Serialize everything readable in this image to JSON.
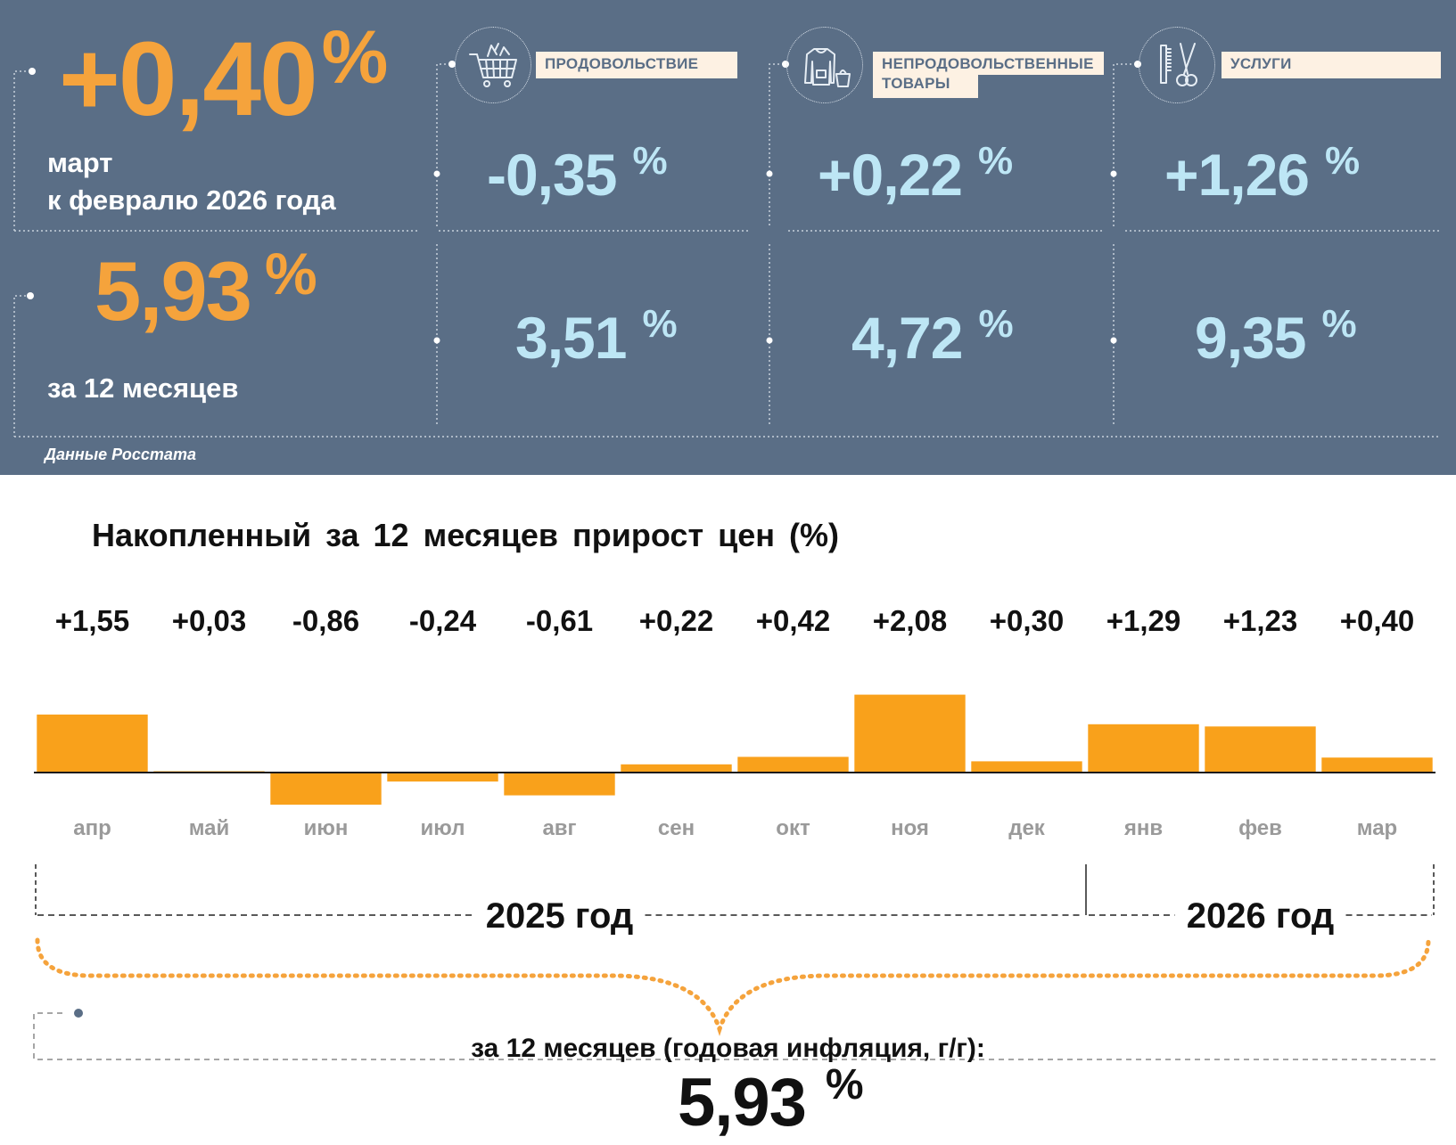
{
  "monthly": {
    "value": "+0,40",
    "unit": "%",
    "caption_line1": "март",
    "caption_line2": "к февралю 2026 года"
  },
  "annual": {
    "value": "5,93",
    "unit": "%",
    "caption": "за 12 месяцев"
  },
  "categories": [
    {
      "label": "ПРОДОВОЛЬСТВИЕ",
      "icon": "shopping-cart-icon",
      "monthly": "-0,35",
      "annual": "3,51",
      "unit": "%"
    },
    {
      "label_line1": "НЕПРОДОВОЛЬСТВЕННЫЕ",
      "label_line2": "ТОВАРЫ",
      "icon": "clothing-icon",
      "monthly": "+0,22",
      "annual": "4,72",
      "unit": "%"
    },
    {
      "label": "УСЛУГИ",
      "icon": "comb-scissors-icon",
      "monthly": "+1,26",
      "annual": "9,35",
      "unit": "%"
    }
  ],
  "source": "Данные Росстата",
  "chart_data": {
    "type": "bar",
    "title": "Накопленный за 12 месяцев прирост цен (%)",
    "categories": [
      "апр",
      "май",
      "июн",
      "июл",
      "авг",
      "сен",
      "окт",
      "ноя",
      "дек",
      "янв",
      "фев",
      "мар"
    ],
    "values": [
      1.55,
      0.03,
      -0.86,
      -0.24,
      -0.61,
      0.22,
      0.42,
      2.08,
      0.3,
      1.29,
      1.23,
      0.4
    ],
    "value_labels": [
      "+1,55",
      "+0,03",
      "-0,86",
      "-0,24",
      "-0,61",
      "+0,22",
      "+0,42",
      "+2,08",
      "+0,30",
      "+1,29",
      "+1,23",
      "+0,40"
    ],
    "year_groups": [
      {
        "label": "2025 год",
        "months": 9
      },
      {
        "label": "2026 год",
        "months": 3
      }
    ],
    "bar_color": "#f9a11b",
    "grid": false,
    "legend": "none"
  },
  "summary": {
    "caption": "за 12 месяцев (годовая инфляция, г/г):",
    "value": "5,93",
    "unit": "%"
  },
  "colors": {
    "panel_bg": "#5a6e86",
    "accent_orange": "#f5a33c",
    "category_value": "#bde6f5",
    "label_bg": "#fdf1e3"
  }
}
